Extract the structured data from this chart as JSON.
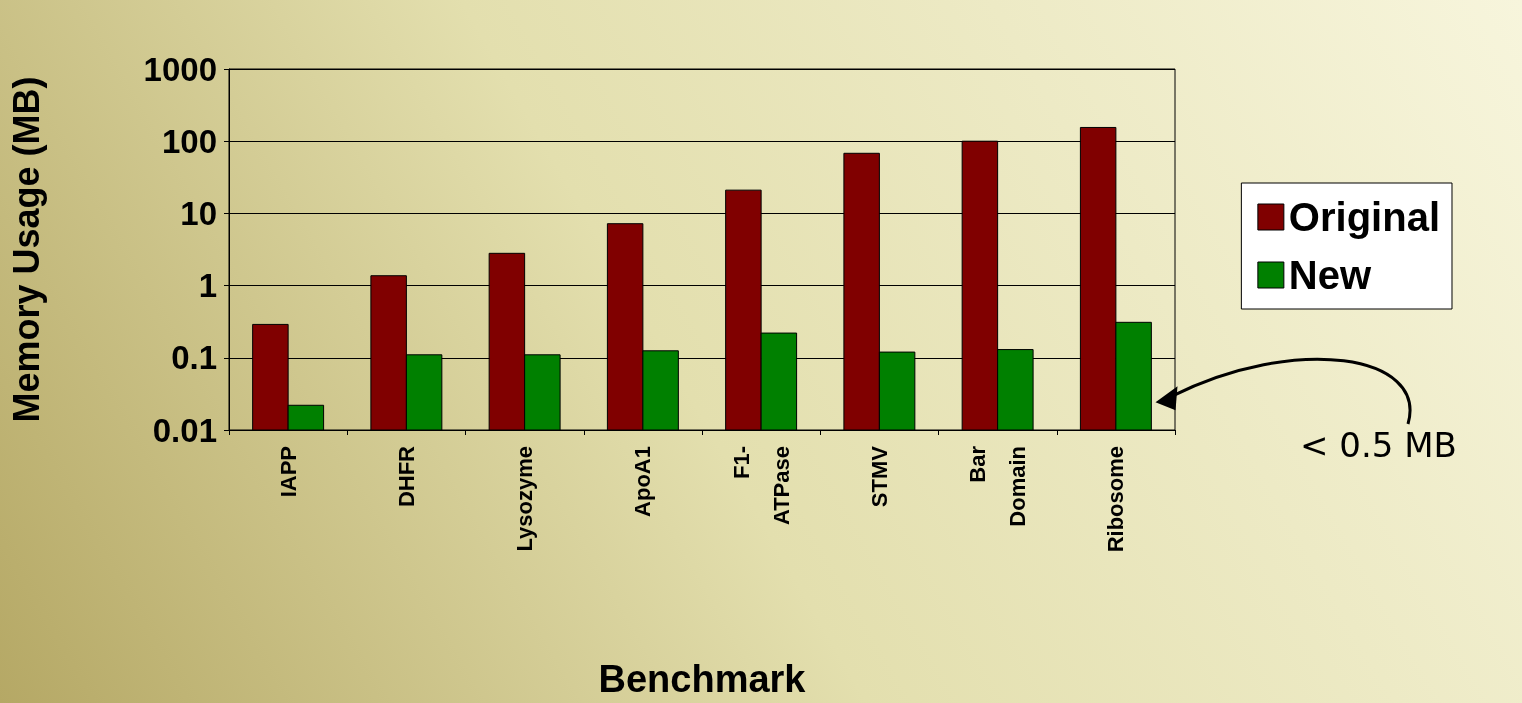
{
  "chart_data": {
    "type": "bar",
    "xlabel": "Benchmark",
    "ylabel": "Memory Usage (MB)",
    "categories": [
      "IAPP",
      "DHFR",
      "Lysozyme",
      "ApoA1",
      "F1-ATPase",
      "STMV",
      "Bar Domain",
      "Ribosome"
    ],
    "series": [
      {
        "name": "Original",
        "color": "#800000",
        "values": [
          0.29,
          1.37,
          2.8,
          7.2,
          21,
          68,
          100,
          155
        ]
      },
      {
        "name": "New",
        "color": "#008000",
        "values": [
          0.022,
          0.11,
          0.11,
          0.125,
          0.22,
          0.12,
          0.13,
          0.31
        ]
      }
    ],
    "log": "y",
    "ylim": [
      0.01,
      1000
    ],
    "yticks": [
      0.01,
      0.1,
      1,
      10,
      100,
      1000
    ],
    "grid": "y",
    "legend": "right",
    "annotations": [
      "< 0.5 MB"
    ]
  }
}
